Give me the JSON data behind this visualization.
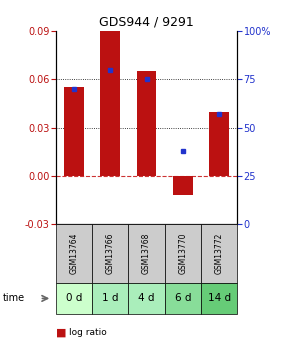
{
  "title": "GDS944 / 9291",
  "samples": [
    "GSM13764",
    "GSM13766",
    "GSM13768",
    "GSM13770",
    "GSM13772"
  ],
  "time_labels": [
    "0 d",
    "1 d",
    "4 d",
    "6 d",
    "14 d"
  ],
  "log_ratio": [
    0.055,
    0.09,
    0.065,
    -0.012,
    0.04
  ],
  "percentile": [
    70,
    80,
    75,
    38,
    57
  ],
  "bar_color": "#bb1111",
  "dot_color": "#2233cc",
  "ylim_left": [
    -0.03,
    0.09
  ],
  "ylim_right": [
    0,
    100
  ],
  "yticks_left": [
    -0.03,
    0,
    0.03,
    0.06,
    0.09
  ],
  "yticks_right": [
    0,
    25,
    50,
    75,
    100
  ],
  "hlines": [
    0.03,
    0.06
  ],
  "zero_line_color": "#cc3333",
  "dot_line_color": "#333333",
  "bar_width": 0.55,
  "sample_bg_color": "#cccccc",
  "time_bg_colors": [
    "#ccffcc",
    "#aaeebb",
    "#aaeebb",
    "#88dd99",
    "#66cc77"
  ],
  "legend_log_color": "#bb1111",
  "legend_pct_color": "#2233cc",
  "title_fontsize": 9,
  "tick_fontsize": 7,
  "gsm_fontsize": 5.5,
  "time_fontsize": 7.5,
  "legend_fontsize": 6.5
}
